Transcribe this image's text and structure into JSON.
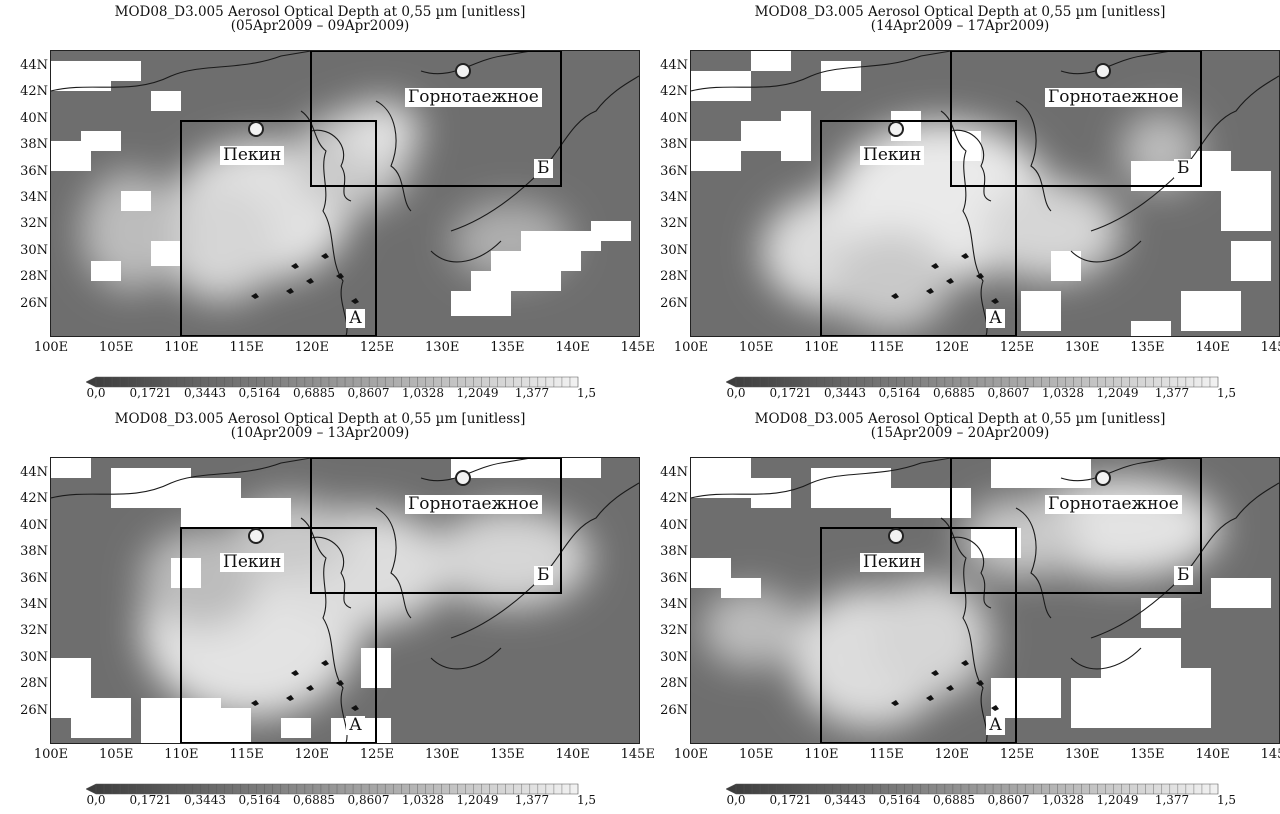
{
  "title_line1": "MOD08_D3.005 Aerosol Optical Depth at 0,55 µm [unitless]",
  "panels": [
    {
      "subtitle": "(05Apr2009 – 09Apr2009)"
    },
    {
      "subtitle": "(14Apr2009 – 17Apr2009)"
    },
    {
      "subtitle": "(10Apr2009 – 13Apr2009)"
    },
    {
      "subtitle": "(15Apr2009 – 20Apr2009)"
    }
  ],
  "lat_labels": [
    "44N",
    "42N",
    "40N",
    "38N",
    "36N",
    "34N",
    "32N",
    "30N",
    "28N",
    "26N"
  ],
  "lon_labels": [
    "100E",
    "105E",
    "110E",
    "115E",
    "120E",
    "125E",
    "130E",
    "135E",
    "140E",
    "145E"
  ],
  "colorbar_labels": [
    "0,0",
    "0,1721",
    "0,3443",
    "0,5164",
    "0,6885",
    "0,8607",
    "1,0328",
    "1,2049",
    "1,377",
    "1,5"
  ],
  "labels": {
    "beijing": "Пекин",
    "gornotaezhnoe": "Горнотаежное",
    "region_a": "А",
    "region_b": "Б"
  },
  "colors": {
    "aerosol_low": "#3a3a3a",
    "aerosol_high": "#f2f2f2",
    "missing": "#ffffff"
  }
}
